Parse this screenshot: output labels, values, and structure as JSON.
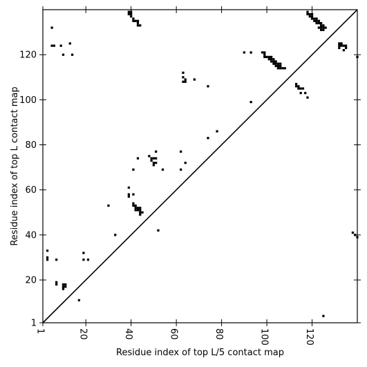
{
  "chart_data": {
    "type": "scatter",
    "title": "",
    "xlabel": "Residue index of top L/5 contact map",
    "ylabel": "Residue index of top L contact map",
    "xlim": [
      1,
      140
    ],
    "ylim": [
      1,
      140
    ],
    "x_ticks": [
      1,
      20,
      40,
      60,
      80,
      100,
      120
    ],
    "y_ticks": [
      1,
      20,
      40,
      60,
      80,
      100,
      120
    ],
    "diagonal": true,
    "grid": false,
    "marker": "square",
    "marker_color": "#000000",
    "series": [
      {
        "name": "",
        "points": [
          [
            5,
            132
          ],
          [
            5,
            124
          ],
          [
            6,
            124
          ],
          [
            9,
            124
          ],
          [
            10,
            120
          ],
          [
            13,
            125
          ],
          [
            14,
            120
          ],
          [
            39,
            139
          ],
          [
            39,
            138
          ],
          [
            40,
            139
          ],
          [
            40,
            138
          ],
          [
            40,
            137
          ],
          [
            41,
            136
          ],
          [
            41,
            135
          ],
          [
            42,
            135
          ],
          [
            43,
            135
          ],
          [
            43,
            134
          ],
          [
            43,
            133
          ],
          [
            44,
            133
          ],
          [
            90,
            121
          ],
          [
            93,
            121
          ],
          [
            98,
            121
          ],
          [
            99,
            121
          ],
          [
            99,
            120
          ],
          [
            99,
            119
          ],
          [
            100,
            119
          ],
          [
            101,
            119
          ],
          [
            102,
            119
          ],
          [
            101,
            118
          ],
          [
            102,
            118
          ],
          [
            103,
            118
          ],
          [
            102,
            117
          ],
          [
            103,
            117
          ],
          [
            104,
            117
          ],
          [
            103,
            116
          ],
          [
            104,
            116
          ],
          [
            105,
            116
          ],
          [
            106,
            116
          ],
          [
            104,
            115
          ],
          [
            105,
            115
          ],
          [
            106,
            115
          ],
          [
            105,
            114
          ],
          [
            106,
            114
          ],
          [
            107,
            114
          ],
          [
            108,
            114
          ],
          [
            118,
            139
          ],
          [
            118,
            138
          ],
          [
            119,
            138
          ],
          [
            120,
            138
          ],
          [
            119,
            137
          ],
          [
            120,
            137
          ],
          [
            120,
            136
          ],
          [
            121,
            136
          ],
          [
            122,
            136
          ],
          [
            121,
            135
          ],
          [
            122,
            135
          ],
          [
            123,
            135
          ],
          [
            122,
            134
          ],
          [
            123,
            134
          ],
          [
            124,
            134
          ],
          [
            124,
            133
          ],
          [
            125,
            133
          ],
          [
            123,
            132
          ],
          [
            124,
            132
          ],
          [
            125,
            132
          ],
          [
            126,
            132
          ],
          [
            124,
            131
          ],
          [
            125,
            131
          ],
          [
            132,
            125
          ],
          [
            132,
            124
          ],
          [
            133,
            125
          ],
          [
            133,
            124
          ],
          [
            132,
            123
          ],
          [
            134,
            124
          ],
          [
            135,
            124
          ],
          [
            135,
            123
          ],
          [
            134,
            122
          ],
          [
            140,
            119
          ],
          [
            63,
            112
          ],
          [
            63,
            110
          ],
          [
            63,
            108
          ],
          [
            64,
            109
          ],
          [
            64,
            108
          ],
          [
            68,
            109
          ],
          [
            74,
            106
          ],
          [
            113,
            107
          ],
          [
            113,
            106
          ],
          [
            114,
            106
          ],
          [
            114,
            105
          ],
          [
            115,
            105
          ],
          [
            116,
            105
          ],
          [
            115,
            103
          ],
          [
            117,
            103
          ],
          [
            118,
            101
          ],
          [
            93,
            99
          ],
          [
            78,
            86
          ],
          [
            74,
            83
          ],
          [
            48,
            75
          ],
          [
            49,
            74
          ],
          [
            49,
            73
          ],
          [
            50,
            74
          ],
          [
            51,
            74
          ],
          [
            50,
            72
          ],
          [
            50,
            71
          ],
          [
            51,
            72
          ],
          [
            51,
            77
          ],
          [
            43,
            74
          ],
          [
            41,
            69
          ],
          [
            54,
            69
          ],
          [
            62,
            77
          ],
          [
            62,
            69
          ],
          [
            64,
            72
          ],
          [
            39,
            61
          ],
          [
            39,
            58
          ],
          [
            39,
            57
          ],
          [
            41,
            58
          ],
          [
            41,
            54
          ],
          [
            41,
            53
          ],
          [
            42,
            53
          ],
          [
            42,
            52
          ],
          [
            43,
            52
          ],
          [
            44,
            52
          ],
          [
            42,
            51
          ],
          [
            43,
            51
          ],
          [
            44,
            51
          ],
          [
            44,
            50
          ],
          [
            45,
            50
          ],
          [
            44,
            49
          ],
          [
            30,
            53
          ],
          [
            52,
            42
          ],
          [
            33,
            40
          ],
          [
            138,
            41
          ],
          [
            139,
            40
          ],
          [
            140,
            39
          ],
          [
            3,
            33
          ],
          [
            3,
            30
          ],
          [
            3,
            29
          ],
          [
            7,
            29
          ],
          [
            7,
            19
          ],
          [
            7,
            18
          ],
          [
            10,
            18
          ],
          [
            11,
            18
          ],
          [
            10,
            17
          ],
          [
            11,
            17
          ],
          [
            10,
            16
          ],
          [
            19,
            32
          ],
          [
            19,
            29
          ],
          [
            21,
            29
          ],
          [
            17,
            11
          ],
          [
            125,
            4
          ]
        ]
      }
    ]
  }
}
